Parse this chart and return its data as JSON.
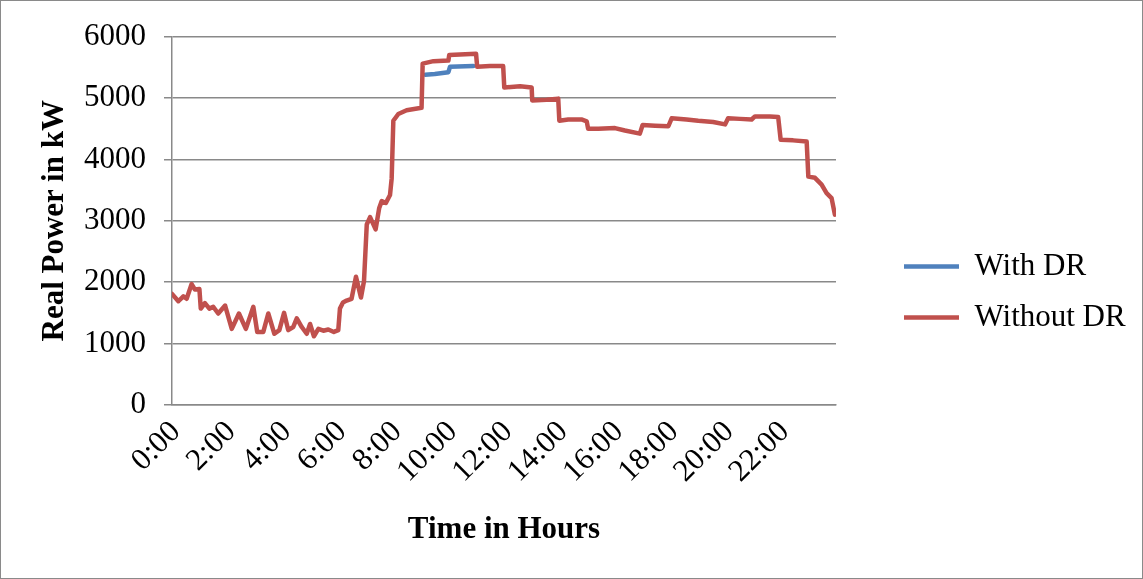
{
  "chart_data": {
    "type": "line",
    "xlabel": "Time in Hours",
    "ylabel": "Real Power in kW",
    "xlim": [
      0,
      24
    ],
    "xticks": [
      {
        "value": 0,
        "label": "0:00"
      },
      {
        "value": 2,
        "label": "2:00"
      },
      {
        "value": 4,
        "label": "4:00"
      },
      {
        "value": 6,
        "label": "6:00"
      },
      {
        "value": 8,
        "label": "8:00"
      },
      {
        "value": 10,
        "label": "10:00"
      },
      {
        "value": 12,
        "label": "12:00"
      },
      {
        "value": 14,
        "label": "14:00"
      },
      {
        "value": 16,
        "label": "16:00"
      },
      {
        "value": 18,
        "label": "18:00"
      },
      {
        "value": 20,
        "label": "20:00"
      },
      {
        "value": 22,
        "label": "22:00"
      }
    ],
    "ylim": [
      0,
      6000
    ],
    "yticks": [
      0,
      1000,
      2000,
      3000,
      4000,
      5000,
      6000
    ],
    "grid": "y",
    "legend": "right",
    "series": [
      {
        "name": "With DR",
        "color": "#4f81bd",
        "x": [
          9.15,
          9.5,
          9.99,
          10.05,
          10.89
        ],
        "values": [
          5380,
          5390,
          5420,
          5510,
          5520
        ]
      },
      {
        "name": "Without DR",
        "color": "#c0504d",
        "x": [
          0,
          0.23,
          0.41,
          0.53,
          0.71,
          0.83,
          0.99,
          1.04,
          1.19,
          1.35,
          1.49,
          1.67,
          1.92,
          2.16,
          2.42,
          2.67,
          2.94,
          3.08,
          3.3,
          3.48,
          3.7,
          3.88,
          4.05,
          4.2,
          4.38,
          4.51,
          4.69,
          4.87,
          4.99,
          5.13,
          5.29,
          5.47,
          5.65,
          5.85,
          6.01,
          6.07,
          6.18,
          6.31,
          6.49,
          6.65,
          6.83,
          6.94,
          7.04,
          7.16,
          7.36,
          7.49,
          7.58,
          7.73,
          7.88,
          7.94,
          8,
          8.18,
          8.48,
          9.02,
          9.06,
          9.45,
          9.99,
          10.02,
          10.41,
          10.99,
          11.03,
          11.49,
          11.97,
          12.01,
          12.58,
          13,
          13.02,
          13.54,
          13.96,
          14,
          14.32,
          14.8,
          14.99,
          15.04,
          15.41,
          16.01,
          16.37,
          16.91,
          17.01,
          17.46,
          17.94,
          18.06,
          18.6,
          19.02,
          19.56,
          19.99,
          20.1,
          20.53,
          20.95,
          21.07,
          21.61,
          21.91,
          22,
          22.45,
          22.94,
          23,
          23.24,
          23.48,
          23.66,
          23.84,
          23.96
        ],
        "values": [
          1810,
          1690,
          1770,
          1730,
          1970,
          1880,
          1890,
          1570,
          1660,
          1570,
          1600,
          1490,
          1620,
          1240,
          1490,
          1240,
          1600,
          1190,
          1190,
          1490,
          1160,
          1220,
          1500,
          1220,
          1270,
          1410,
          1270,
          1160,
          1320,
          1120,
          1240,
          1210,
          1230,
          1190,
          1220,
          1570,
          1670,
          1700,
          1730,
          2090,
          1750,
          2020,
          2940,
          3060,
          2860,
          3210,
          3320,
          3290,
          3420,
          3690,
          4630,
          4740,
          4800,
          4840,
          5560,
          5600,
          5610,
          5700,
          5710,
          5720,
          5510,
          5520,
          5520,
          5170,
          5190,
          5170,
          4960,
          4970,
          4990,
          4630,
          4650,
          4650,
          4620,
          4500,
          4500,
          4510,
          4470,
          4420,
          4560,
          4550,
          4540,
          4670,
          4650,
          4630,
          4610,
          4570,
          4670,
          4660,
          4650,
          4700,
          4700,
          4690,
          4320,
          4310,
          4290,
          3720,
          3700,
          3590,
          3450,
          3370,
          3100
        ]
      }
    ]
  }
}
